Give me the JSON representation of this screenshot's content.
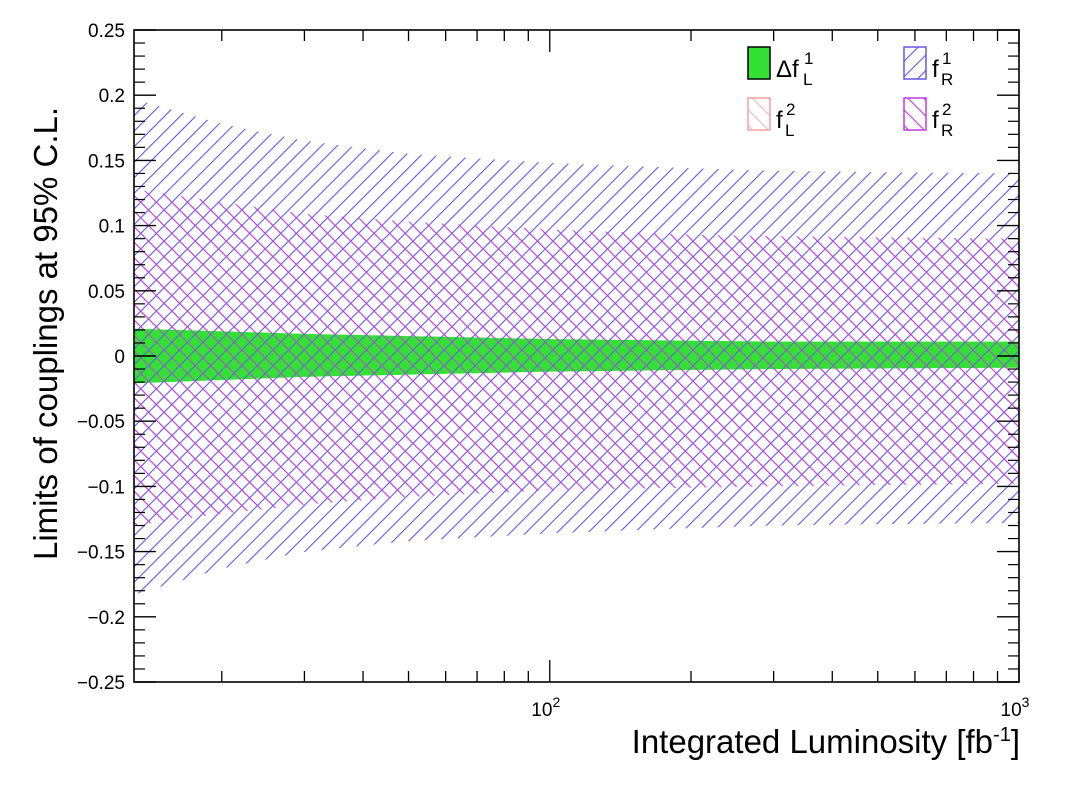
{
  "chart_data": {
    "type": "area",
    "xlabel": "Integrated Luminosity [fb",
    "xlabel_sup": "-1",
    "xlabel_close": "]",
    "ylabel": "Limits of couplings at 95% C.L.",
    "xscale": "log",
    "xlim": [
      13,
      1000
    ],
    "ylim": [
      -0.25,
      0.25
    ],
    "x_ticks": [
      {
        "value": 100,
        "base": "10",
        "exp": "2"
      },
      {
        "value": 1000,
        "base": "10",
        "exp": "3"
      }
    ],
    "y_ticks": [
      {
        "value": 0.25,
        "label": "0.25"
      },
      {
        "value": 0.2,
        "label": "0.2"
      },
      {
        "value": 0.15,
        "label": "0.15"
      },
      {
        "value": 0.1,
        "label": "0.1"
      },
      {
        "value": 0.05,
        "label": "0.05"
      },
      {
        "value": 0,
        "label": "0"
      },
      {
        "value": -0.05,
        "label": "−0.05"
      },
      {
        "value": -0.1,
        "label": "−0.1"
      },
      {
        "value": -0.15,
        "label": "−0.15"
      },
      {
        "value": -0.2,
        "label": "−0.2"
      },
      {
        "value": -0.25,
        "label": "−0.25"
      }
    ],
    "legend_position": "top-right",
    "series": [
      {
        "name": "Δf",
        "sup": "1",
        "sub": "L",
        "style": "fill-hatch-out",
        "color": "#35e035",
        "x": [
          13,
          30,
          100,
          300,
          1000
        ],
        "upper": [
          0.021,
          0.017,
          0.013,
          0.011,
          0.011
        ],
        "lower": [
          -0.021,
          -0.016,
          -0.012,
          -0.01,
          -0.009
        ]
      },
      {
        "name": "f",
        "sup": "1",
        "sub": "R",
        "style": "hatch-down",
        "color": "#6457e8",
        "x": [
          13,
          20,
          30,
          50,
          100,
          200,
          300,
          500,
          1000
        ],
        "upper": [
          0.197,
          0.178,
          0.165,
          0.155,
          0.148,
          0.144,
          0.142,
          0.141,
          0.14
        ],
        "lower": [
          -0.183,
          -0.163,
          -0.15,
          -0.142,
          -0.136,
          -0.132,
          -0.13,
          -0.129,
          -0.128
        ]
      },
      {
        "name": "f",
        "sup": "2",
        "sub": "L",
        "style": "hatch-up-faint",
        "color": "#f4a0a0",
        "x": [
          13,
          20,
          30,
          50,
          100,
          200,
          300,
          500,
          1000
        ],
        "upper": [
          0.121,
          0.112,
          0.104,
          0.099,
          0.094,
          0.091,
          0.09,
          0.089,
          0.088
        ],
        "lower": [
          -0.126,
          -0.117,
          -0.111,
          -0.106,
          -0.101,
          -0.099,
          -0.098,
          -0.097,
          -0.096
        ]
      },
      {
        "name": "f",
        "sup": "2",
        "sub": "R",
        "style": "hatch-up",
        "color": "#c23ce0",
        "x": [
          13,
          20,
          30,
          50,
          100,
          200,
          300,
          500,
          1000
        ],
        "upper": [
          0.128,
          0.118,
          0.109,
          0.103,
          0.097,
          0.093,
          0.092,
          0.091,
          0.09
        ],
        "lower": [
          -0.13,
          -0.121,
          -0.114,
          -0.108,
          -0.103,
          -0.101,
          -0.1,
          -0.099,
          -0.098
        ]
      }
    ]
  }
}
